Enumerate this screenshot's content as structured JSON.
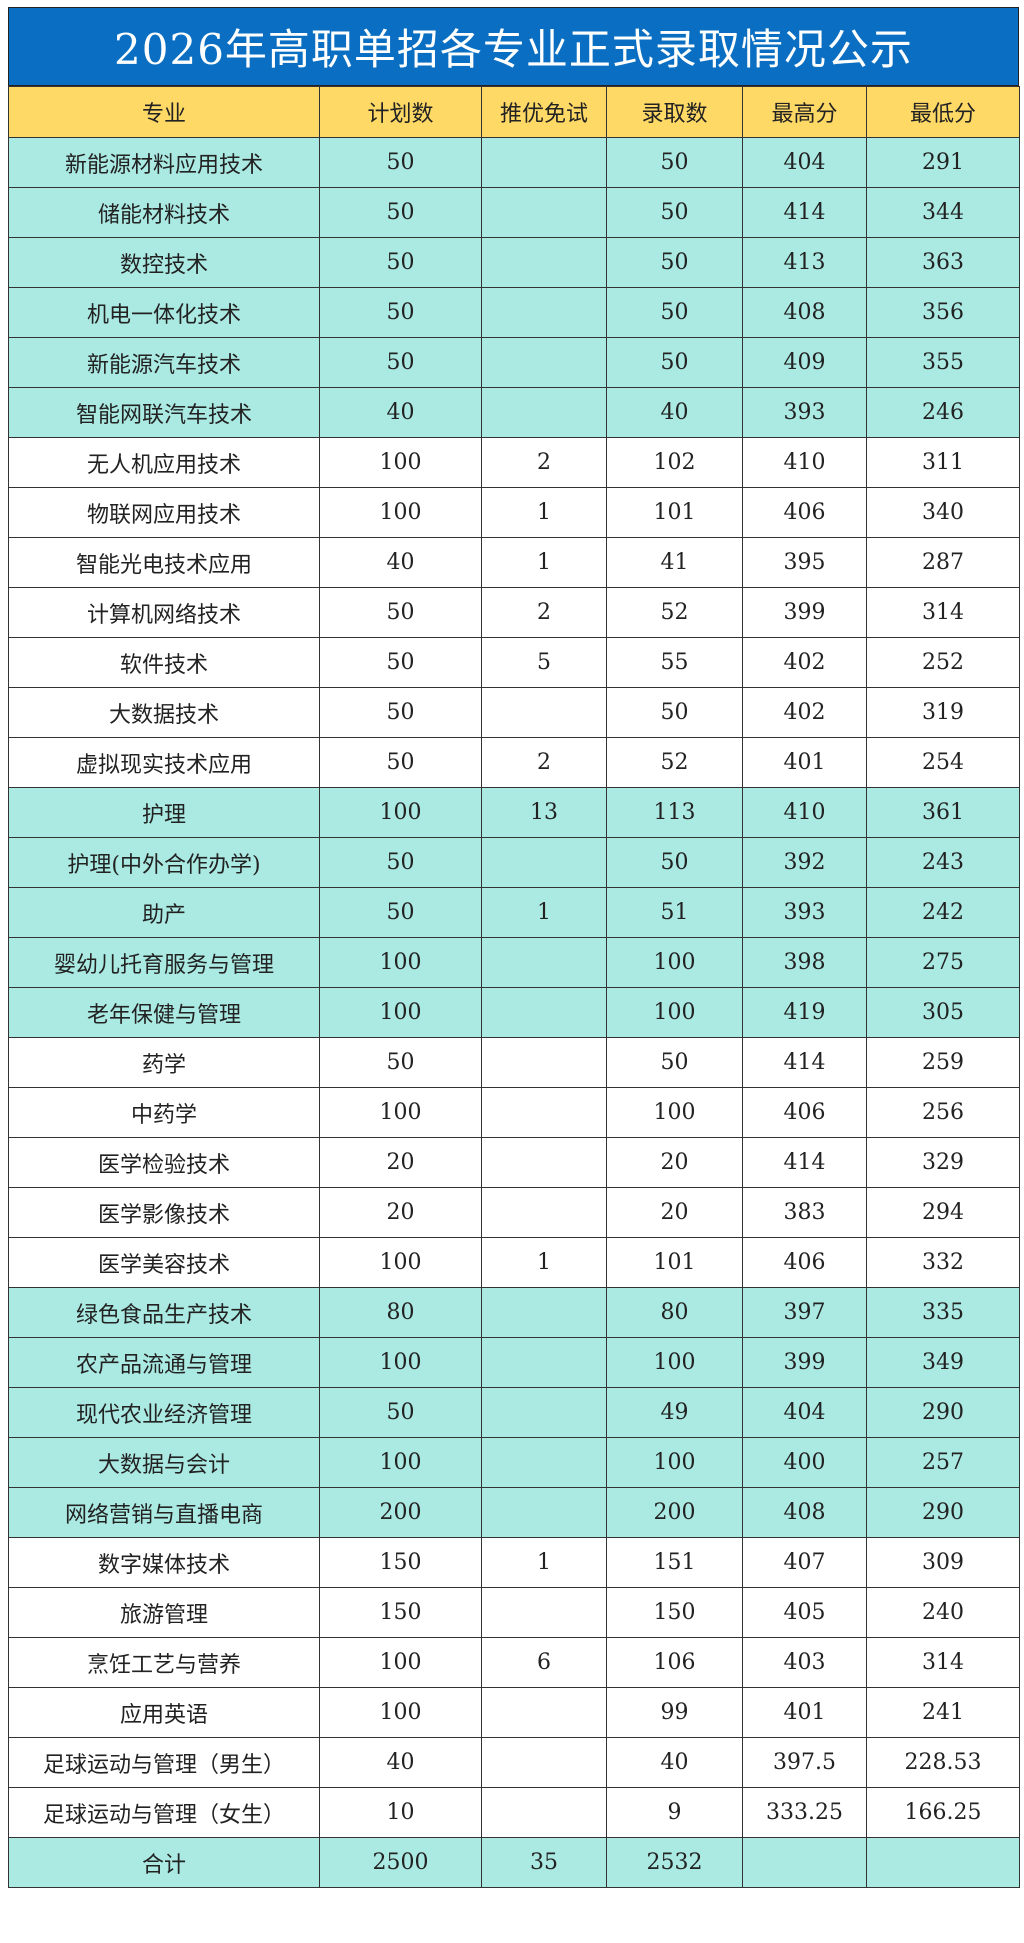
{
  "title": "2026年高职单招各专业正式录取情况公示",
  "colors": {
    "title_bg": "#0A6FC2",
    "header_bg": "#FFD966",
    "highlight_row": "#ABEAE3"
  },
  "headers": [
    "专业",
    "计划数",
    "推优免试",
    "录取数",
    "最高分",
    "最低分"
  ],
  "rows": [
    {
      "major": "新能源材料应用技术",
      "plan": "50",
      "exempt": "",
      "admitted": "50",
      "max": "404",
      "min": "291",
      "teal": true
    },
    {
      "major": "储能材料技术",
      "plan": "50",
      "exempt": "",
      "admitted": "50",
      "max": "414",
      "min": "344",
      "teal": true
    },
    {
      "major": "数控技术",
      "plan": "50",
      "exempt": "",
      "admitted": "50",
      "max": "413",
      "min": "363",
      "teal": true
    },
    {
      "major": "机电一体化技术",
      "plan": "50",
      "exempt": "",
      "admitted": "50",
      "max": "408",
      "min": "356",
      "teal": true
    },
    {
      "major": "新能源汽车技术",
      "plan": "50",
      "exempt": "",
      "admitted": "50",
      "max": "409",
      "min": "355",
      "teal": true
    },
    {
      "major": "智能网联汽车技术",
      "plan": "40",
      "exempt": "",
      "admitted": "40",
      "max": "393",
      "min": "246",
      "teal": true
    },
    {
      "major": "无人机应用技术",
      "plan": "100",
      "exempt": "2",
      "admitted": "102",
      "max": "410",
      "min": "311",
      "teal": false
    },
    {
      "major": "物联网应用技术",
      "plan": "100",
      "exempt": "1",
      "admitted": "101",
      "max": "406",
      "min": "340",
      "teal": false
    },
    {
      "major": "智能光电技术应用",
      "plan": "40",
      "exempt": "1",
      "admitted": "41",
      "max": "395",
      "min": "287",
      "teal": false
    },
    {
      "major": "计算机网络技术",
      "plan": "50",
      "exempt": "2",
      "admitted": "52",
      "max": "399",
      "min": "314",
      "teal": false
    },
    {
      "major": "软件技术",
      "plan": "50",
      "exempt": "5",
      "admitted": "55",
      "max": "402",
      "min": "252",
      "teal": false
    },
    {
      "major": "大数据技术",
      "plan": "50",
      "exempt": "",
      "admitted": "50",
      "max": "402",
      "min": "319",
      "teal": false
    },
    {
      "major": "虚拟现实技术应用",
      "plan": "50",
      "exempt": "2",
      "admitted": "52",
      "max": "401",
      "min": "254",
      "teal": false
    },
    {
      "major": "护理",
      "plan": "100",
      "exempt": "13",
      "admitted": "113",
      "max": "410",
      "min": "361",
      "teal": true
    },
    {
      "major": "护理(中外合作办学)",
      "plan": "50",
      "exempt": "",
      "admitted": "50",
      "max": "392",
      "min": "243",
      "teal": true
    },
    {
      "major": "助产",
      "plan": "50",
      "exempt": "1",
      "admitted": "51",
      "max": "393",
      "min": "242",
      "teal": true
    },
    {
      "major": "婴幼儿托育服务与管理",
      "plan": "100",
      "exempt": "",
      "admitted": "100",
      "max": "398",
      "min": "275",
      "teal": true
    },
    {
      "major": "老年保健与管理",
      "plan": "100",
      "exempt": "",
      "admitted": "100",
      "max": "419",
      "min": "305",
      "teal": true
    },
    {
      "major": "药学",
      "plan": "50",
      "exempt": "",
      "admitted": "50",
      "max": "414",
      "min": "259",
      "teal": false
    },
    {
      "major": "中药学",
      "plan": "100",
      "exempt": "",
      "admitted": "100",
      "max": "406",
      "min": "256",
      "teal": false
    },
    {
      "major": "医学检验技术",
      "plan": "20",
      "exempt": "",
      "admitted": "20",
      "max": "414",
      "min": "329",
      "teal": false
    },
    {
      "major": "医学影像技术",
      "plan": "20",
      "exempt": "",
      "admitted": "20",
      "max": "383",
      "min": "294",
      "teal": false
    },
    {
      "major": "医学美容技术",
      "plan": "100",
      "exempt": "1",
      "admitted": "101",
      "max": "406",
      "min": "332",
      "teal": false
    },
    {
      "major": "绿色食品生产技术",
      "plan": "80",
      "exempt": "",
      "admitted": "80",
      "max": "397",
      "min": "335",
      "teal": true
    },
    {
      "major": "农产品流通与管理",
      "plan": "100",
      "exempt": "",
      "admitted": "100",
      "max": "399",
      "min": "349",
      "teal": true
    },
    {
      "major": "现代农业经济管理",
      "plan": "50",
      "exempt": "",
      "admitted": "49",
      "max": "404",
      "min": "290",
      "teal": true
    },
    {
      "major": "大数据与会计",
      "plan": "100",
      "exempt": "",
      "admitted": "100",
      "max": "400",
      "min": "257",
      "teal": true
    },
    {
      "major": "网络营销与直播电商",
      "plan": "200",
      "exempt": "",
      "admitted": "200",
      "max": "408",
      "min": "290",
      "teal": true
    },
    {
      "major": "数字媒体技术",
      "plan": "150",
      "exempt": "1",
      "admitted": "151",
      "max": "407",
      "min": "309",
      "teal": false
    },
    {
      "major": "旅游管理",
      "plan": "150",
      "exempt": "",
      "admitted": "150",
      "max": "405",
      "min": "240",
      "teal": false
    },
    {
      "major": "烹饪工艺与营养",
      "plan": "100",
      "exempt": "6",
      "admitted": "106",
      "max": "403",
      "min": "314",
      "teal": false
    },
    {
      "major": "应用英语",
      "plan": "100",
      "exempt": "",
      "admitted": "99",
      "max": "401",
      "min": "241",
      "teal": false
    },
    {
      "major": "足球运动与管理（男生）",
      "plan": "40",
      "exempt": "",
      "admitted": "40",
      "max": "397.5",
      "min": "228.53",
      "teal": false
    },
    {
      "major": "足球运动与管理（女生）",
      "plan": "10",
      "exempt": "",
      "admitted": "9",
      "max": "333.25",
      "min": "166.25",
      "teal": false
    },
    {
      "major": "合计",
      "plan": "2500",
      "exempt": "35",
      "admitted": "2532",
      "max": "",
      "min": "",
      "teal": true
    }
  ]
}
